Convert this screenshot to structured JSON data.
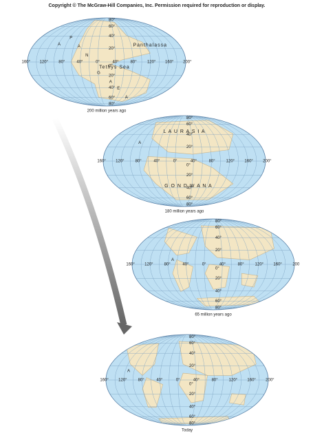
{
  "header": {
    "title": "Copyright © The McGraw-Hill Companies, Inc. Permission required for reproduction or display."
  },
  "maps": [
    {
      "caption": "200 million years ago",
      "lon_labels": [
        "160°",
        "120°",
        "80°",
        "40°",
        "0°",
        "40°",
        "80°",
        "120°",
        "160°",
        "200°"
      ],
      "lat_labels": [
        "80°",
        "60°",
        "40°",
        "20°",
        "0°",
        "20°",
        "40°",
        "60°",
        "80°"
      ],
      "annotations": [
        "Panthalassa",
        "Tethys Sea",
        "A",
        "P",
        "A",
        "N",
        "G",
        "A",
        "E",
        "A"
      ]
    },
    {
      "caption": "180 million years ago",
      "lon_labels": [
        "160°",
        "120°",
        "80°",
        "40°",
        "0°",
        "40°",
        "80°",
        "120°",
        "160°",
        "200°"
      ],
      "lat_labels": [
        "80°",
        "60°",
        "40°",
        "20°",
        "0°",
        "20°",
        "40°",
        "60°",
        "80°"
      ],
      "annotations": [
        "L A U R A S I A",
        "G O N D W A N A",
        "A"
      ]
    },
    {
      "caption": "65 million years ago",
      "lon_labels": [
        "160°",
        "120°",
        "80°",
        "40°",
        "0°",
        "40°",
        "80°",
        "120°",
        "160°",
        "200"
      ],
      "lat_labels": [
        "80°",
        "60°",
        "40°",
        "20°",
        "0°",
        "20°",
        "40°",
        "60°",
        "80°"
      ],
      "annotations": [
        "A"
      ]
    },
    {
      "caption": "Today",
      "lon_labels": [
        "160°",
        "120°",
        "80°",
        "40°",
        "0°",
        "40°",
        "80°",
        "120°",
        "160°",
        "200°"
      ],
      "lat_labels": [
        "80°",
        "60°",
        "40°",
        "20°",
        "0°",
        "20°",
        "40°",
        "60°",
        "80°"
      ],
      "annotations": [
        "A"
      ]
    }
  ]
}
